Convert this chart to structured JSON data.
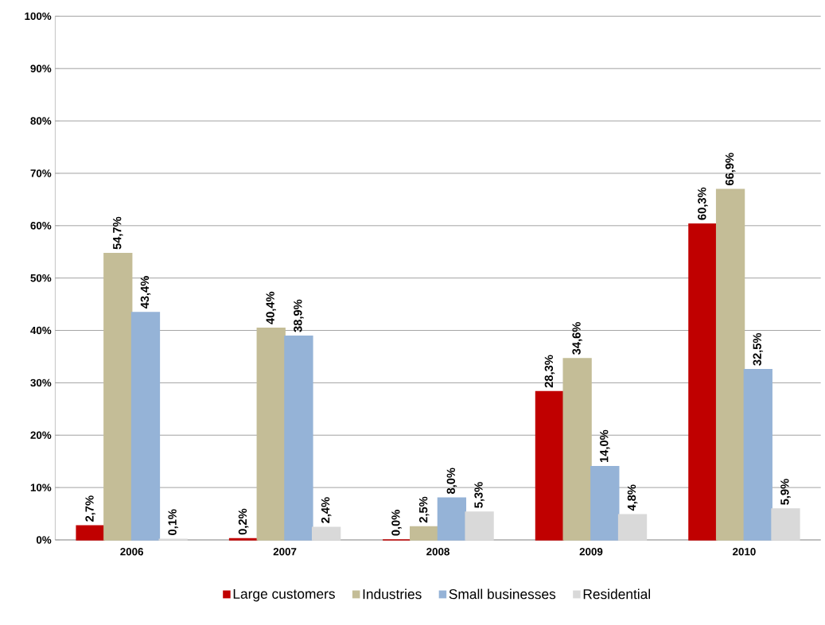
{
  "chart_data": {
    "type": "bar",
    "categories": [
      "2006",
      "2007",
      "2008",
      "2009",
      "2010"
    ],
    "series": [
      {
        "name": "Large customers",
        "color": "#c00000",
        "values": [
          2.7,
          0.2,
          0.0,
          28.3,
          60.3
        ],
        "value_labels": [
          "2,7%",
          "0,2%",
          "0,0%",
          "28,3%",
          "60,3%"
        ]
      },
      {
        "name": "Industries",
        "color": "#c4bd97",
        "values": [
          54.7,
          40.4,
          2.5,
          34.6,
          66.9
        ],
        "value_labels": [
          "54,7%",
          "40,4%",
          "2,5%",
          "34,6%",
          "66,9%"
        ]
      },
      {
        "name": "Small businesses",
        "color": "#95b3d7",
        "values": [
          43.4,
          38.9,
          8.0,
          14.0,
          32.5
        ],
        "value_labels": [
          "43,4%",
          "38,9%",
          "8,0%",
          "14,0%",
          "32,5%"
        ]
      },
      {
        "name": "Residential",
        "color": "#d9d9d9",
        "values": [
          0.1,
          2.4,
          5.3,
          4.8,
          5.9
        ],
        "value_labels": [
          "0,1%",
          "2,4%",
          "5,3%",
          "4,8%",
          "5,9%"
        ]
      }
    ],
    "ylim": [
      0,
      100
    ],
    "yticks": [
      {
        "value": 0,
        "label": "0%"
      },
      {
        "value": 10,
        "label": "10%"
      },
      {
        "value": 20,
        "label": "20%"
      },
      {
        "value": 30,
        "label": "30%"
      },
      {
        "value": 40,
        "label": "40%"
      },
      {
        "value": 50,
        "label": "50%"
      },
      {
        "value": 60,
        "label": "60%"
      },
      {
        "value": 70,
        "label": "70%"
      },
      {
        "value": 80,
        "label": "80%"
      },
      {
        "value": 90,
        "label": "90%"
      },
      {
        "value": 100,
        "label": "100%"
      }
    ],
    "grid": "y",
    "legend": "bottom"
  }
}
